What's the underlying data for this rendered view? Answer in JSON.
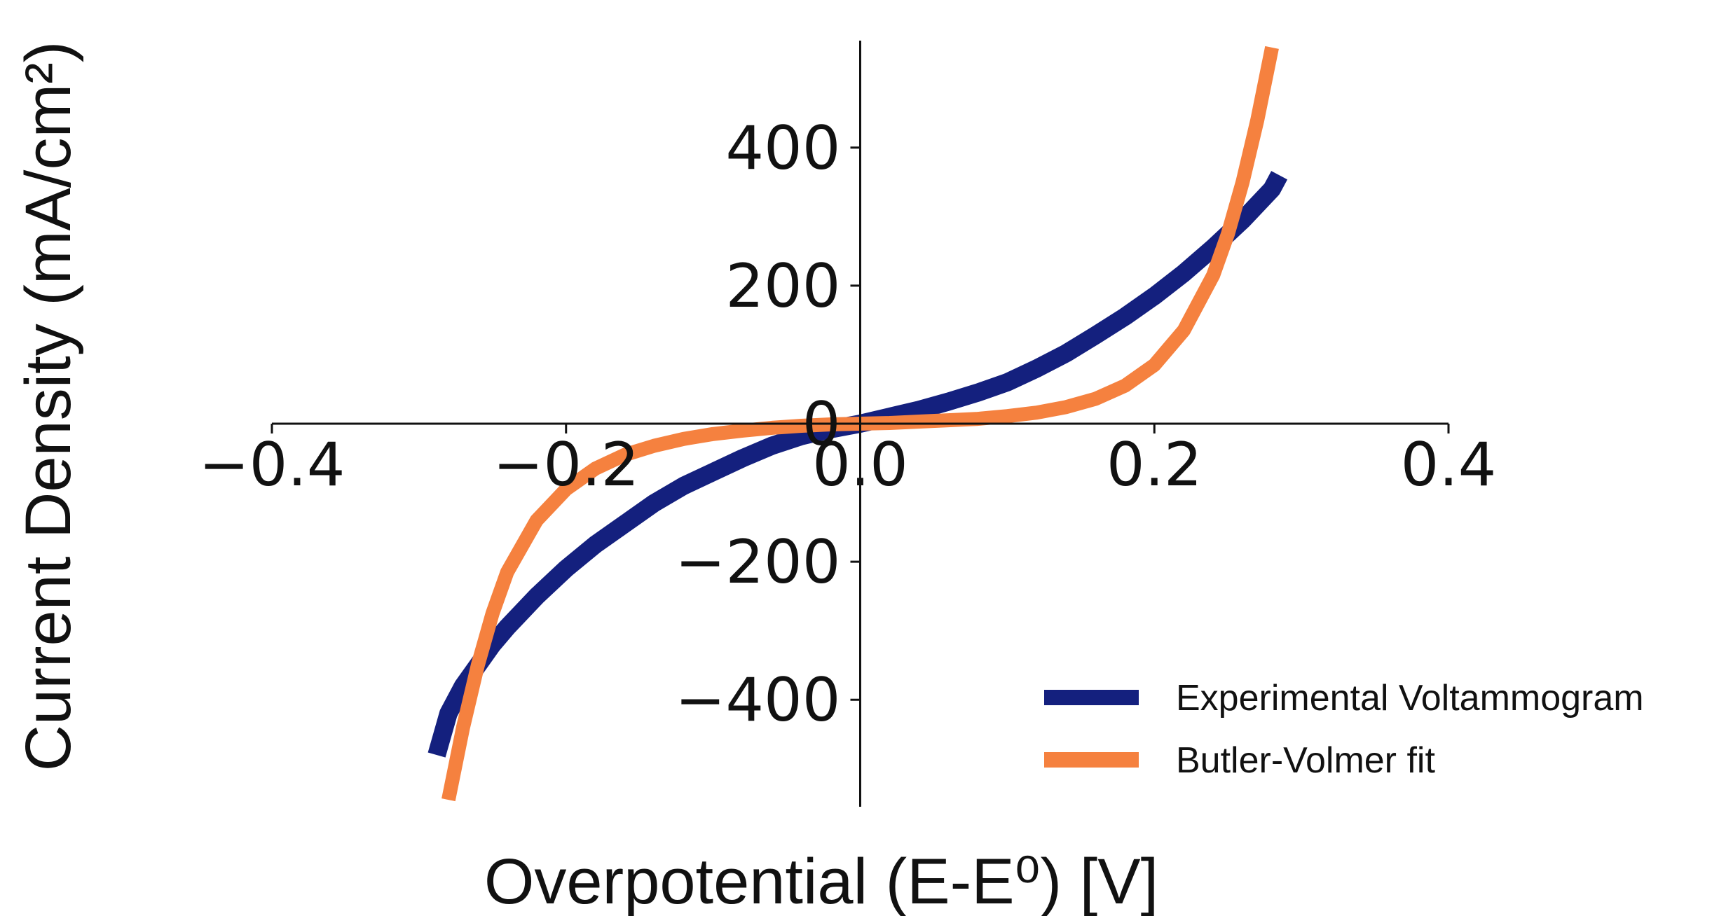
{
  "chart_data": {
    "type": "line",
    "xlabel": "Overpotential (E-E⁰) [V]",
    "ylabel": "Current Density (mA/cm²)",
    "xlim": [
      -0.4,
      0.4
    ],
    "ylim": [
      -555,
      555
    ],
    "xticks": [
      -0.4,
      -0.2,
      0.0,
      0.2,
      0.4
    ],
    "xtick_labels": [
      "−0.4",
      "−0.2",
      "0.0",
      "0.2",
      "0.4"
    ],
    "yticks": [
      -400,
      -200,
      0,
      200,
      400
    ],
    "ytick_labels": [
      "−400",
      "−200",
      "0",
      "200",
      "400"
    ],
    "grid": false,
    "legend_position": "bottom-right",
    "series": [
      {
        "name": "Experimental Voltammogram",
        "color": "#14207e",
        "x": [
          -0.288,
          -0.28,
          -0.27,
          -0.26,
          -0.25,
          -0.24,
          -0.22,
          -0.2,
          -0.18,
          -0.16,
          -0.14,
          -0.12,
          -0.1,
          -0.08,
          -0.06,
          -0.04,
          -0.02,
          0.0,
          0.02,
          0.04,
          0.06,
          0.08,
          0.1,
          0.12,
          0.14,
          0.16,
          0.18,
          0.2,
          0.22,
          0.24,
          0.26,
          0.28,
          0.285
        ],
        "y": [
          -480,
          -420,
          -380,
          -350,
          -320,
          -295,
          -250,
          -210,
          -175,
          -145,
          -115,
          -90,
          -70,
          -50,
          -32,
          -18,
          -8,
          0,
          10,
          20,
          32,
          45,
          60,
          80,
          102,
          128,
          155,
          185,
          218,
          255,
          295,
          340,
          360
        ]
      },
      {
        "name": "Butler-Volmer fit",
        "color": "#f5813f",
        "x": [
          -0.28,
          -0.27,
          -0.26,
          -0.25,
          -0.24,
          -0.22,
          -0.2,
          -0.18,
          -0.16,
          -0.14,
          -0.12,
          -0.1,
          -0.08,
          -0.06,
          -0.04,
          -0.02,
          0.0,
          0.02,
          0.04,
          0.06,
          0.08,
          0.1,
          0.12,
          0.14,
          0.16,
          0.18,
          0.2,
          0.22,
          0.24,
          0.25,
          0.26,
          0.27,
          0.28
        ],
        "y": [
          -545,
          -440,
          -350,
          -275,
          -215,
          -140,
          -95,
          -65,
          -45,
          -32,
          -22,
          -15,
          -10,
          -6,
          -3,
          -1,
          0,
          1,
          3,
          5,
          7,
          11,
          16,
          24,
          36,
          55,
          85,
          135,
          215,
          275,
          350,
          440,
          545
        ]
      }
    ]
  }
}
